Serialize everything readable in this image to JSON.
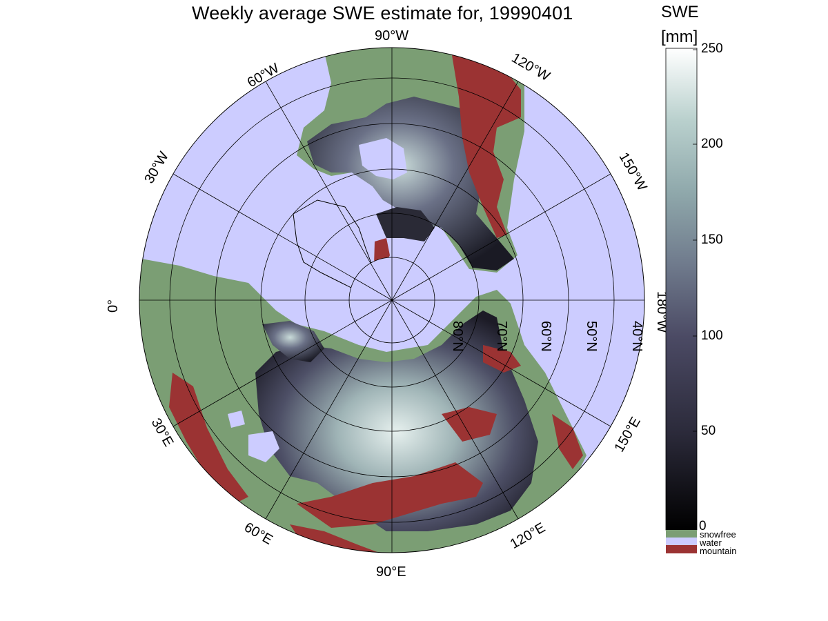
{
  "title": "Weekly average SWE estimate for, 19990401",
  "colorbar": {
    "title_line1": "SWE",
    "title_line2": "[mm]",
    "ticks": [
      "250",
      "200",
      "150",
      "100",
      "50",
      "0"
    ],
    "tick_values": [
      250,
      200,
      150,
      100,
      50,
      0
    ],
    "range": [
      0,
      250
    ],
    "colors": [
      "#000000",
      "#2b2a3a",
      "#4b4a64",
      "#6f7a8c",
      "#8fa8ab",
      "#b9d0cd",
      "#ffffff"
    ],
    "categories": [
      {
        "label": "snowfree",
        "color": "#7b9e74"
      },
      {
        "label": "water",
        "color": "#ccccff"
      },
      {
        "label": "mountain",
        "color": "#9b3333"
      }
    ]
  },
  "map": {
    "projection": "north polar stereographic",
    "colors": {
      "water": "#ccccff",
      "snowfree": "#7b9e74",
      "mountain": "#9b3333",
      "grid": "#000000"
    },
    "meridian_labels": [
      "90°W",
      "120°W",
      "150°W",
      "180°W",
      "150°E",
      "120°E",
      "90°E",
      "60°E",
      "30°E",
      "0°",
      "30°W",
      "60°W"
    ],
    "parallel_labels": [
      "80°N",
      "70°N",
      "60°N",
      "50°N",
      "40°N"
    ]
  }
}
